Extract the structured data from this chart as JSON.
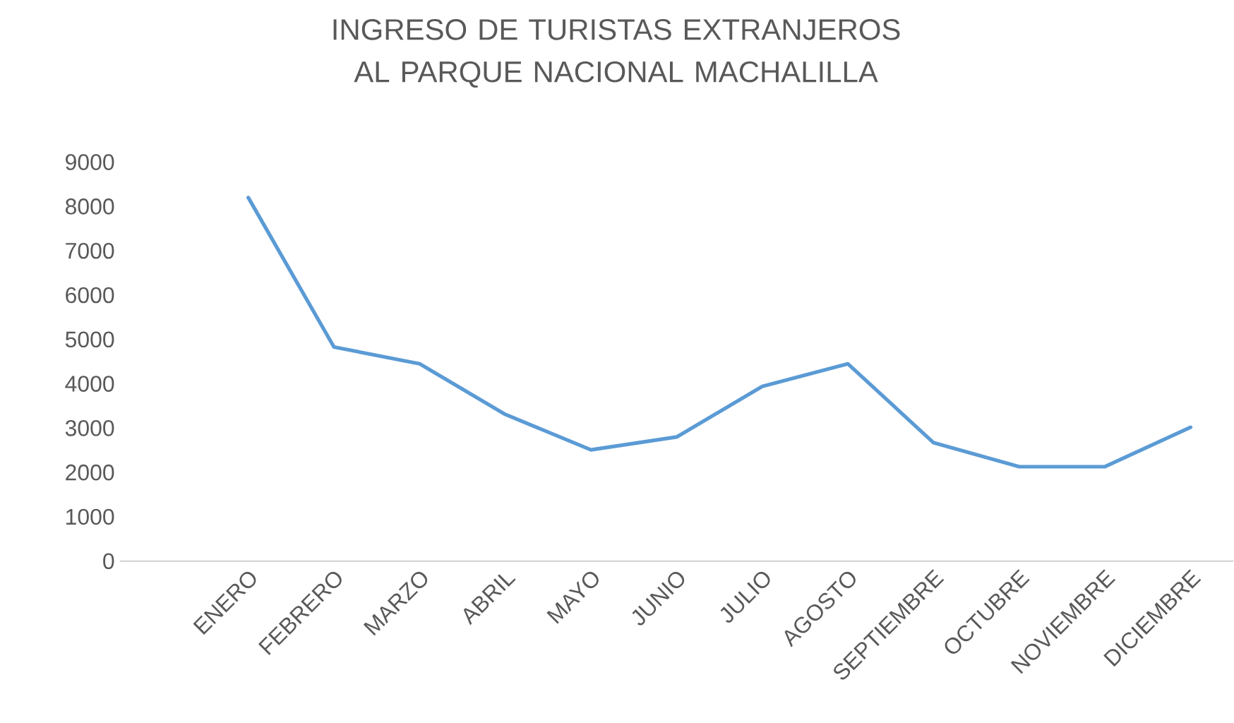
{
  "chart_data": {
    "type": "line",
    "title": "INGRESO DE  TURISTAS EXTRANJEROS AL PARQUE NACIONAL MACHALILLA",
    "categories": [
      null,
      "ENERO",
      "FEBRERO",
      "MARZO",
      "ABRIL",
      "MAYO",
      "JUNIO",
      "JULIO",
      "AGOSTO",
      "SEPTIEMBRE",
      "OCTUBRE",
      "NOVIEMBRE",
      "DICIEMBRE"
    ],
    "series": [
      {
        "color": "#5b9bd5",
        "values": [
          null,
          8200,
          4830,
          4450,
          3310,
          2510,
          2800,
          3940,
          4450,
          2670,
          2130,
          2130,
          3020
        ]
      }
    ],
    "ylim": [
      0,
      9000
    ],
    "yticks": [
      0,
      1000,
      2000,
      3000,
      4000,
      5000,
      6000,
      7000,
      8000,
      9000
    ],
    "grid": false,
    "legend": false,
    "marker": "none",
    "line_style": "solid"
  }
}
